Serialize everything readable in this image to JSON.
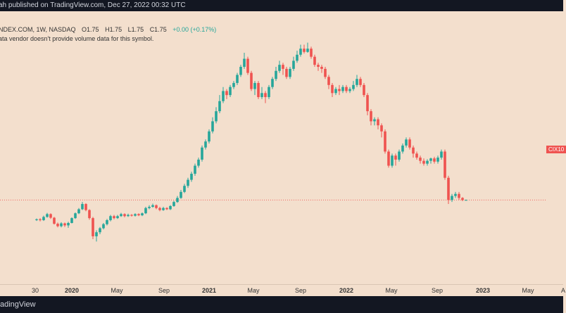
{
  "header": {
    "text": "ah published on TradingView.com, Dec 27, 2022 00:32 UTC"
  },
  "legend": {
    "symbol": "NDEX.COM, 1W, NASDAQ",
    "open": "O1.75",
    "high": "H1.75",
    "low": "L1.75",
    "close": "C1.75",
    "change": "+0.00 (+0.17%)",
    "vendor_note": "ata vendor doesn't provide volume data for this symbol."
  },
  "price_tag": "CIX10",
  "footer": {
    "brand": "adingView"
  },
  "colors": {
    "up": "#26a69a",
    "down": "#ef5350",
    "background": "#f3dfcd",
    "bar": "#131722",
    "priceline": "#ef5350"
  },
  "chart_data": {
    "type": "candlestick",
    "timeframe": "1W",
    "x_ticks": [
      {
        "label": "30",
        "bold": false
      },
      {
        "label": "2020",
        "bold": true
      },
      {
        "label": "May",
        "bold": false
      },
      {
        "label": "Sep",
        "bold": false
      },
      {
        "label": "2021",
        "bold": true
      },
      {
        "label": "May",
        "bold": false
      },
      {
        "label": "Sep",
        "bold": false
      },
      {
        "label": "2022",
        "bold": true
      },
      {
        "label": "May",
        "bold": false
      },
      {
        "label": "Sep",
        "bold": false
      },
      {
        "label": "2023",
        "bold": true
      },
      {
        "label": "May",
        "bold": false
      },
      {
        "label": "A",
        "bold": false
      }
    ],
    "ylim": [
      0.5,
      5.8
    ],
    "last_price": 1.75,
    "candles": [
      [
        1.25,
        1.27,
        1.29,
        1.23
      ],
      [
        1.27,
        1.25,
        1.3,
        1.22
      ],
      [
        1.25,
        1.33,
        1.36,
        1.23
      ],
      [
        1.33,
        1.4,
        1.43,
        1.31
      ],
      [
        1.4,
        1.31,
        1.42,
        1.28
      ],
      [
        1.31,
        1.16,
        1.33,
        1.14
      ],
      [
        1.16,
        1.1,
        1.19,
        1.07
      ],
      [
        1.1,
        1.17,
        1.2,
        1.07
      ],
      [
        1.17,
        1.12,
        1.19,
        1.08
      ],
      [
        1.12,
        1.18,
        1.21,
        1.06
      ],
      [
        1.18,
        1.3,
        1.32,
        1.17
      ],
      [
        1.3,
        1.42,
        1.44,
        1.28
      ],
      [
        1.42,
        1.52,
        1.55,
        1.4
      ],
      [
        1.52,
        1.65,
        1.7,
        1.5
      ],
      [
        1.65,
        1.5,
        1.67,
        1.47
      ],
      [
        1.5,
        1.3,
        1.52,
        1.26
      ],
      [
        1.3,
        0.85,
        1.33,
        0.78
      ],
      [
        0.85,
        0.95,
        1.0,
        0.72
      ],
      [
        0.95,
        1.05,
        1.08,
        0.9
      ],
      [
        1.05,
        1.15,
        1.18,
        1.02
      ],
      [
        1.15,
        1.25,
        1.28,
        1.12
      ],
      [
        1.25,
        1.35,
        1.38,
        1.22
      ],
      [
        1.35,
        1.3,
        1.38,
        1.27
      ],
      [
        1.3,
        1.35,
        1.38,
        1.28
      ],
      [
        1.35,
        1.4,
        1.43,
        1.33
      ],
      [
        1.4,
        1.35,
        1.42,
        1.32
      ],
      [
        1.35,
        1.38,
        1.41,
        1.33
      ],
      [
        1.38,
        1.36,
        1.4,
        1.34
      ],
      [
        1.36,
        1.4,
        1.42,
        1.34
      ],
      [
        1.4,
        1.37,
        1.42,
        1.35
      ],
      [
        1.37,
        1.42,
        1.44,
        1.35
      ],
      [
        1.42,
        1.55,
        1.58,
        1.4
      ],
      [
        1.55,
        1.58,
        1.62,
        1.52
      ],
      [
        1.58,
        1.62,
        1.66,
        1.56
      ],
      [
        1.62,
        1.55,
        1.64,
        1.52
      ],
      [
        1.55,
        1.5,
        1.58,
        1.47
      ],
      [
        1.5,
        1.55,
        1.58,
        1.48
      ],
      [
        1.55,
        1.52,
        1.57,
        1.5
      ],
      [
        1.52,
        1.6,
        1.62,
        1.5
      ],
      [
        1.6,
        1.7,
        1.73,
        1.58
      ],
      [
        1.7,
        1.8,
        1.85,
        1.68
      ],
      [
        1.8,
        1.95,
        2.0,
        1.78
      ],
      [
        1.95,
        2.1,
        2.15,
        1.92
      ],
      [
        2.1,
        2.25,
        2.3,
        2.05
      ],
      [
        2.25,
        2.4,
        2.45,
        2.2
      ],
      [
        2.4,
        2.6,
        2.65,
        2.35
      ],
      [
        2.6,
        2.75,
        2.8,
        2.55
      ],
      [
        2.75,
        3.05,
        3.1,
        2.7
      ],
      [
        3.05,
        3.2,
        3.25,
        3.0
      ],
      [
        3.2,
        3.45,
        3.5,
        3.15
      ],
      [
        3.45,
        3.7,
        3.8,
        3.4
      ],
      [
        3.7,
        3.95,
        4.05,
        3.65
      ],
      [
        3.95,
        4.2,
        4.35,
        3.9
      ],
      [
        4.2,
        4.45,
        4.55,
        4.15
      ],
      [
        4.45,
        4.35,
        4.5,
        4.25
      ],
      [
        4.35,
        4.55,
        4.6,
        4.3
      ],
      [
        4.55,
        4.65,
        4.7,
        4.5
      ],
      [
        4.65,
        4.85,
        4.9,
        4.6
      ],
      [
        4.85,
        5.05,
        5.1,
        4.8
      ],
      [
        5.05,
        5.25,
        5.4,
        5.0
      ],
      [
        5.25,
        4.9,
        5.3,
        4.85
      ],
      [
        4.9,
        4.5,
        4.95,
        4.45
      ],
      [
        4.5,
        4.65,
        4.7,
        4.35
      ],
      [
        4.65,
        4.3,
        4.7,
        4.25
      ],
      [
        4.3,
        4.4,
        4.55,
        4.25
      ],
      [
        4.4,
        4.3,
        4.45,
        4.15
      ],
      [
        4.3,
        4.55,
        4.6,
        4.25
      ],
      [
        4.55,
        4.75,
        4.8,
        4.5
      ],
      [
        4.75,
        4.95,
        5.05,
        4.7
      ],
      [
        4.95,
        5.1,
        5.2,
        4.9
      ],
      [
        5.1,
        5.0,
        5.15,
        4.85
      ],
      [
        5.0,
        4.8,
        5.05,
        4.75
      ],
      [
        4.8,
        5.0,
        5.05,
        4.75
      ],
      [
        5.0,
        5.2,
        5.3,
        4.95
      ],
      [
        5.2,
        5.35,
        5.45,
        5.15
      ],
      [
        5.35,
        5.5,
        5.6,
        5.3
      ],
      [
        5.5,
        5.42,
        5.6,
        5.38
      ],
      [
        5.42,
        5.5,
        5.65,
        5.4
      ],
      [
        5.5,
        5.3,
        5.55,
        5.25
      ],
      [
        5.3,
        5.1,
        5.35,
        5.05
      ],
      [
        5.1,
        5.05,
        5.15,
        4.95
      ],
      [
        5.05,
        5.0,
        5.1,
        4.9
      ],
      [
        5.0,
        4.8,
        5.05,
        4.75
      ],
      [
        4.8,
        4.6,
        4.85,
        4.5
      ],
      [
        4.6,
        4.4,
        4.65,
        4.3
      ],
      [
        4.4,
        4.5,
        4.55,
        4.35
      ],
      [
        4.5,
        4.45,
        4.6,
        4.35
      ],
      [
        4.45,
        4.55,
        4.6,
        4.4
      ],
      [
        4.55,
        4.45,
        4.6,
        4.4
      ],
      [
        4.45,
        4.5,
        4.55,
        4.4
      ],
      [
        4.5,
        4.6,
        4.7,
        4.45
      ],
      [
        4.6,
        4.75,
        4.85,
        4.55
      ],
      [
        4.75,
        4.6,
        4.8,
        4.55
      ],
      [
        4.6,
        4.35,
        4.65,
        4.3
      ],
      [
        4.35,
        3.95,
        4.4,
        3.85
      ],
      [
        3.95,
        3.7,
        4.0,
        3.6
      ],
      [
        3.7,
        3.75,
        3.8,
        3.6
      ],
      [
        3.75,
        3.6,
        3.8,
        3.5
      ],
      [
        3.6,
        3.45,
        3.65,
        3.3
      ],
      [
        3.45,
        2.95,
        3.5,
        2.9
      ],
      [
        2.95,
        2.6,
        3.0,
        2.55
      ],
      [
        2.6,
        2.85,
        2.9,
        2.55
      ],
      [
        2.85,
        2.75,
        2.9,
        2.6
      ],
      [
        2.75,
        2.95,
        3.0,
        2.7
      ],
      [
        2.95,
        3.1,
        3.15,
        2.9
      ],
      [
        3.1,
        3.25,
        3.3,
        3.05
      ],
      [
        3.25,
        3.05,
        3.3,
        3.0
      ],
      [
        3.05,
        2.9,
        3.1,
        2.8
      ],
      [
        2.9,
        2.8,
        2.95,
        2.75
      ],
      [
        2.8,
        2.72,
        2.85,
        2.65
      ],
      [
        2.72,
        2.65,
        2.78,
        2.6
      ],
      [
        2.65,
        2.72,
        2.76,
        2.6
      ],
      [
        2.72,
        2.78,
        2.8,
        2.65
      ],
      [
        2.78,
        2.7,
        2.82,
        2.65
      ],
      [
        2.7,
        2.8,
        2.85,
        2.65
      ],
      [
        2.8,
        2.95,
        3.0,
        2.75
      ],
      [
        2.95,
        2.3,
        3.0,
        2.25
      ],
      [
        2.3,
        1.75,
        2.35,
        1.65
      ],
      [
        1.75,
        1.85,
        1.9,
        1.7
      ],
      [
        1.85,
        1.9,
        1.95,
        1.8
      ],
      [
        1.9,
        1.8,
        1.95,
        1.75
      ],
      [
        1.8,
        1.75,
        1.82,
        1.72
      ],
      [
        1.75,
        1.75,
        1.76,
        1.74
      ]
    ]
  }
}
